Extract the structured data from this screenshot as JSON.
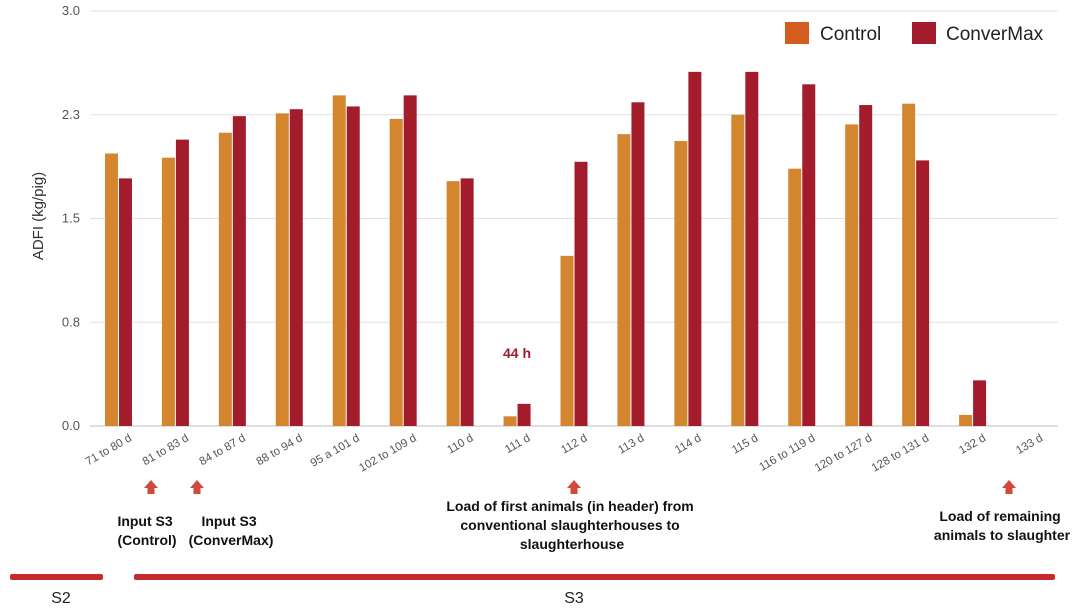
{
  "chart_data": {
    "type": "bar",
    "title": "",
    "xlabel": "",
    "ylabel": "ADFI (kg/pig)",
    "ylim": [
      0,
      3.0
    ],
    "yticks": [
      "0.0",
      "0.8",
      "1.5",
      "2.3",
      "3.0"
    ],
    "grid": true,
    "legend_position": "top-right",
    "categories": [
      "71 to 80 d",
      "81 to 83 d",
      "84 to 87 d",
      "88 to 94 d",
      "95 a 101 d",
      "102 to 109 d",
      "110 d",
      "111 d",
      "112 d",
      "113 d",
      "114 d",
      "115 d",
      "116 to 119 d",
      "120 to 127 d",
      "128 to 131 d",
      "132 d",
      "133 d"
    ],
    "series": [
      {
        "name": "Control",
        "color": "#d4862e",
        "values": [
          1.97,
          1.94,
          2.12,
          2.26,
          2.39,
          2.22,
          1.77,
          0.07,
          1.23,
          2.11,
          2.06,
          2.25,
          1.86,
          2.18,
          2.33,
          0.08,
          null
        ]
      },
      {
        "name": "ConverMax",
        "color": "#a31c2c",
        "values": [
          1.79,
          2.07,
          2.24,
          2.29,
          2.31,
          2.39,
          1.79,
          0.16,
          1.91,
          2.34,
          2.56,
          2.56,
          2.47,
          2.32,
          1.92,
          0.33,
          null
        ]
      }
    ],
    "legend_swatch_colors": [
      "#d55c1f",
      "#a31c2c"
    ],
    "annotations": {
      "highlight": "44 h",
      "input_control": [
        "Input S3",
        "(Control)"
      ],
      "input_convermax": [
        "Input S3",
        "(ConverMax)"
      ],
      "load_first": [
        "Load of first animals (in header) from",
        "conventional slaughterhouses to",
        "slaughterhouse"
      ],
      "load_remaining": [
        "Load of remaining",
        "animals to slaughter"
      ]
    },
    "stages": [
      "S2",
      "S3"
    ],
    "arrow_color": "#d0493a",
    "stage_bar_color": "#c62a2a"
  }
}
